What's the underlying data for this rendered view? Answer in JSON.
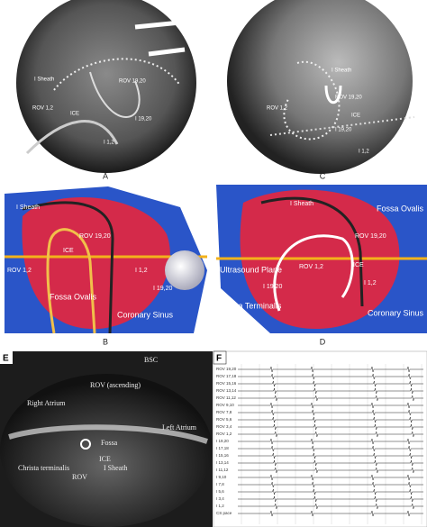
{
  "panels": {
    "a": {
      "letter": "A",
      "labels": [
        "I Sheath",
        "ROV 19,20",
        "ROV 1,2",
        "ICE",
        "I 19,20",
        "I 1,2"
      ]
    },
    "c": {
      "letter": "C",
      "labels": [
        "I Sheath",
        "ROV 19,20",
        "ROV 1,2",
        "ICE",
        "I 19,20",
        "I 1,2"
      ]
    },
    "b": {
      "letter": "B",
      "labels": [
        "I Sheath",
        "ROV 19,20",
        "ICE",
        "ROV 1,2",
        "Fossa Ovalis",
        "I 1,2",
        "I 19,20",
        "Coronary Sinus"
      ]
    },
    "d": {
      "letter": "D",
      "labels": [
        "I Sheath",
        "Fossa Ovalis",
        "ROV 19,20",
        "Ultrasound Plane",
        "ROV 1,2",
        "ICE",
        "I 19,20",
        "Crista Terminalis",
        "I 1,2",
        "Coronary Sinus"
      ]
    },
    "e": {
      "letter": "E",
      "labels": [
        "BSC",
        "ROV (ascending)",
        "Right Atrium",
        "Left Atrium",
        "Fossa",
        "ICE",
        "I Sheath",
        "Christa terminalis",
        "ROV"
      ]
    },
    "f": {
      "letter": "F",
      "channels": [
        "ROV 19,20",
        "ROV 17,18",
        "ROV 15,16",
        "ROV 13,14",
        "ROV 11,12",
        "ROV 9,10",
        "ROV 7,8",
        "ROV 5,6",
        "ROV 3,4",
        "ROV 1,2",
        "I 19,20",
        "I 17,18",
        "I 15,16",
        "I 13,14",
        "I 11,12",
        "I 9,10",
        "I 7,8",
        "I 5,6",
        "I 3,4",
        "I 1,2",
        "CS pace"
      ]
    }
  }
}
